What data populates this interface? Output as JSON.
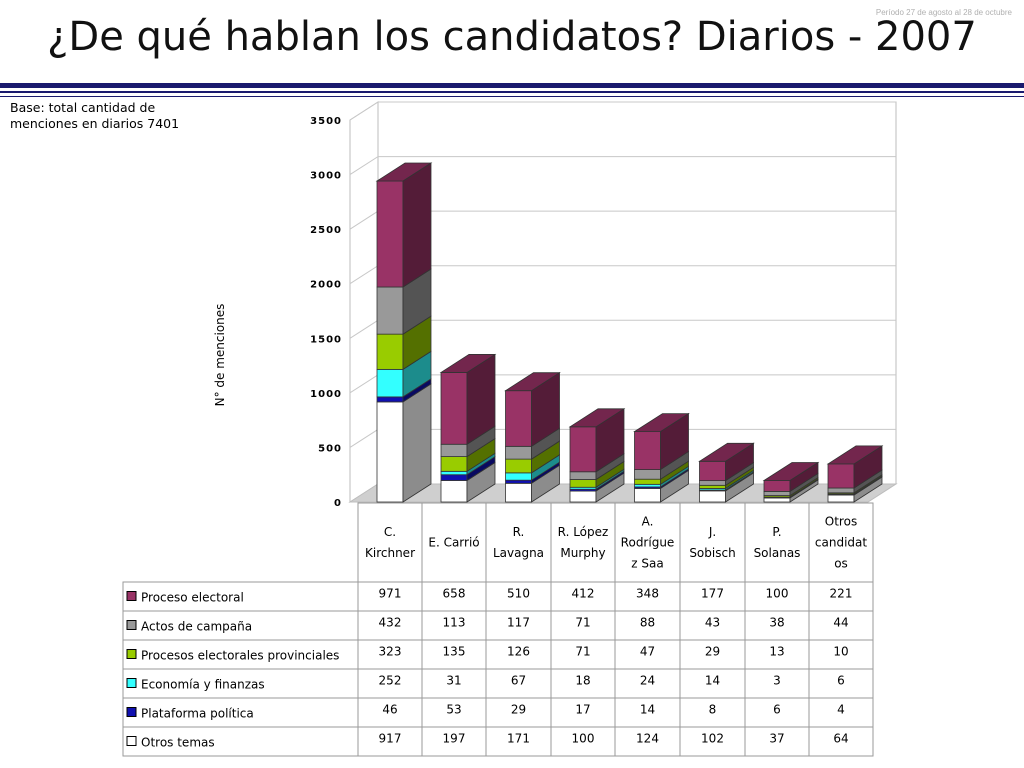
{
  "header": {
    "period": "Período 27 de agosto al 28 de octubre",
    "title": "¿De qué hablan los candidatos? Diarios - 2007"
  },
  "note": {
    "line1": "Base: total cantidad de",
    "line2": "menciones en diarios 7401"
  },
  "colors": {
    "title_rule": "#1a1a6e",
    "grid": "#c8c8c8"
  },
  "chart_data": {
    "type": "bar",
    "stacked": true,
    "three_d": true,
    "ylabel": "N° de menciones",
    "ylim": [
      0,
      3500
    ],
    "yticks": [
      0,
      500,
      1000,
      1500,
      2000,
      2500,
      3000,
      3500
    ],
    "grid": true,
    "categories": [
      [
        "C.",
        "Kirchner"
      ],
      [
        "E. Carrió"
      ],
      [
        "R.",
        "Lavagna"
      ],
      [
        "R. López",
        "Murphy"
      ],
      [
        "A.",
        "Rodrígue",
        "z Saa"
      ],
      [
        "J.",
        "Sobisch"
      ],
      [
        "P.",
        "Solanas"
      ],
      [
        "Otros",
        "candidat",
        "os"
      ]
    ],
    "series": [
      {
        "name": "Otros temas",
        "color": "#ffffff",
        "values": [
          917,
          197,
          171,
          100,
          124,
          102,
          37,
          64
        ]
      },
      {
        "name": "Plataforma política",
        "color": "#1010b0",
        "values": [
          46,
          53,
          29,
          17,
          14,
          8,
          6,
          4
        ]
      },
      {
        "name": "Economía y finanzas",
        "color": "#33ffff",
        "values": [
          252,
          31,
          67,
          18,
          24,
          14,
          3,
          6
        ]
      },
      {
        "name": "Procesos electorales provinciales",
        "color": "#99cc00",
        "values": [
          323,
          135,
          126,
          71,
          47,
          29,
          13,
          10
        ]
      },
      {
        "name": "Actos de campaña",
        "color": "#999999",
        "values": [
          432,
          113,
          117,
          71,
          88,
          43,
          38,
          44
        ]
      },
      {
        "name": "Proceso electoral",
        "color": "#993366",
        "values": [
          971,
          658,
          510,
          412,
          348,
          177,
          100,
          221
        ]
      }
    ],
    "table_row_order": [
      5,
      4,
      3,
      2,
      1,
      0
    ]
  }
}
